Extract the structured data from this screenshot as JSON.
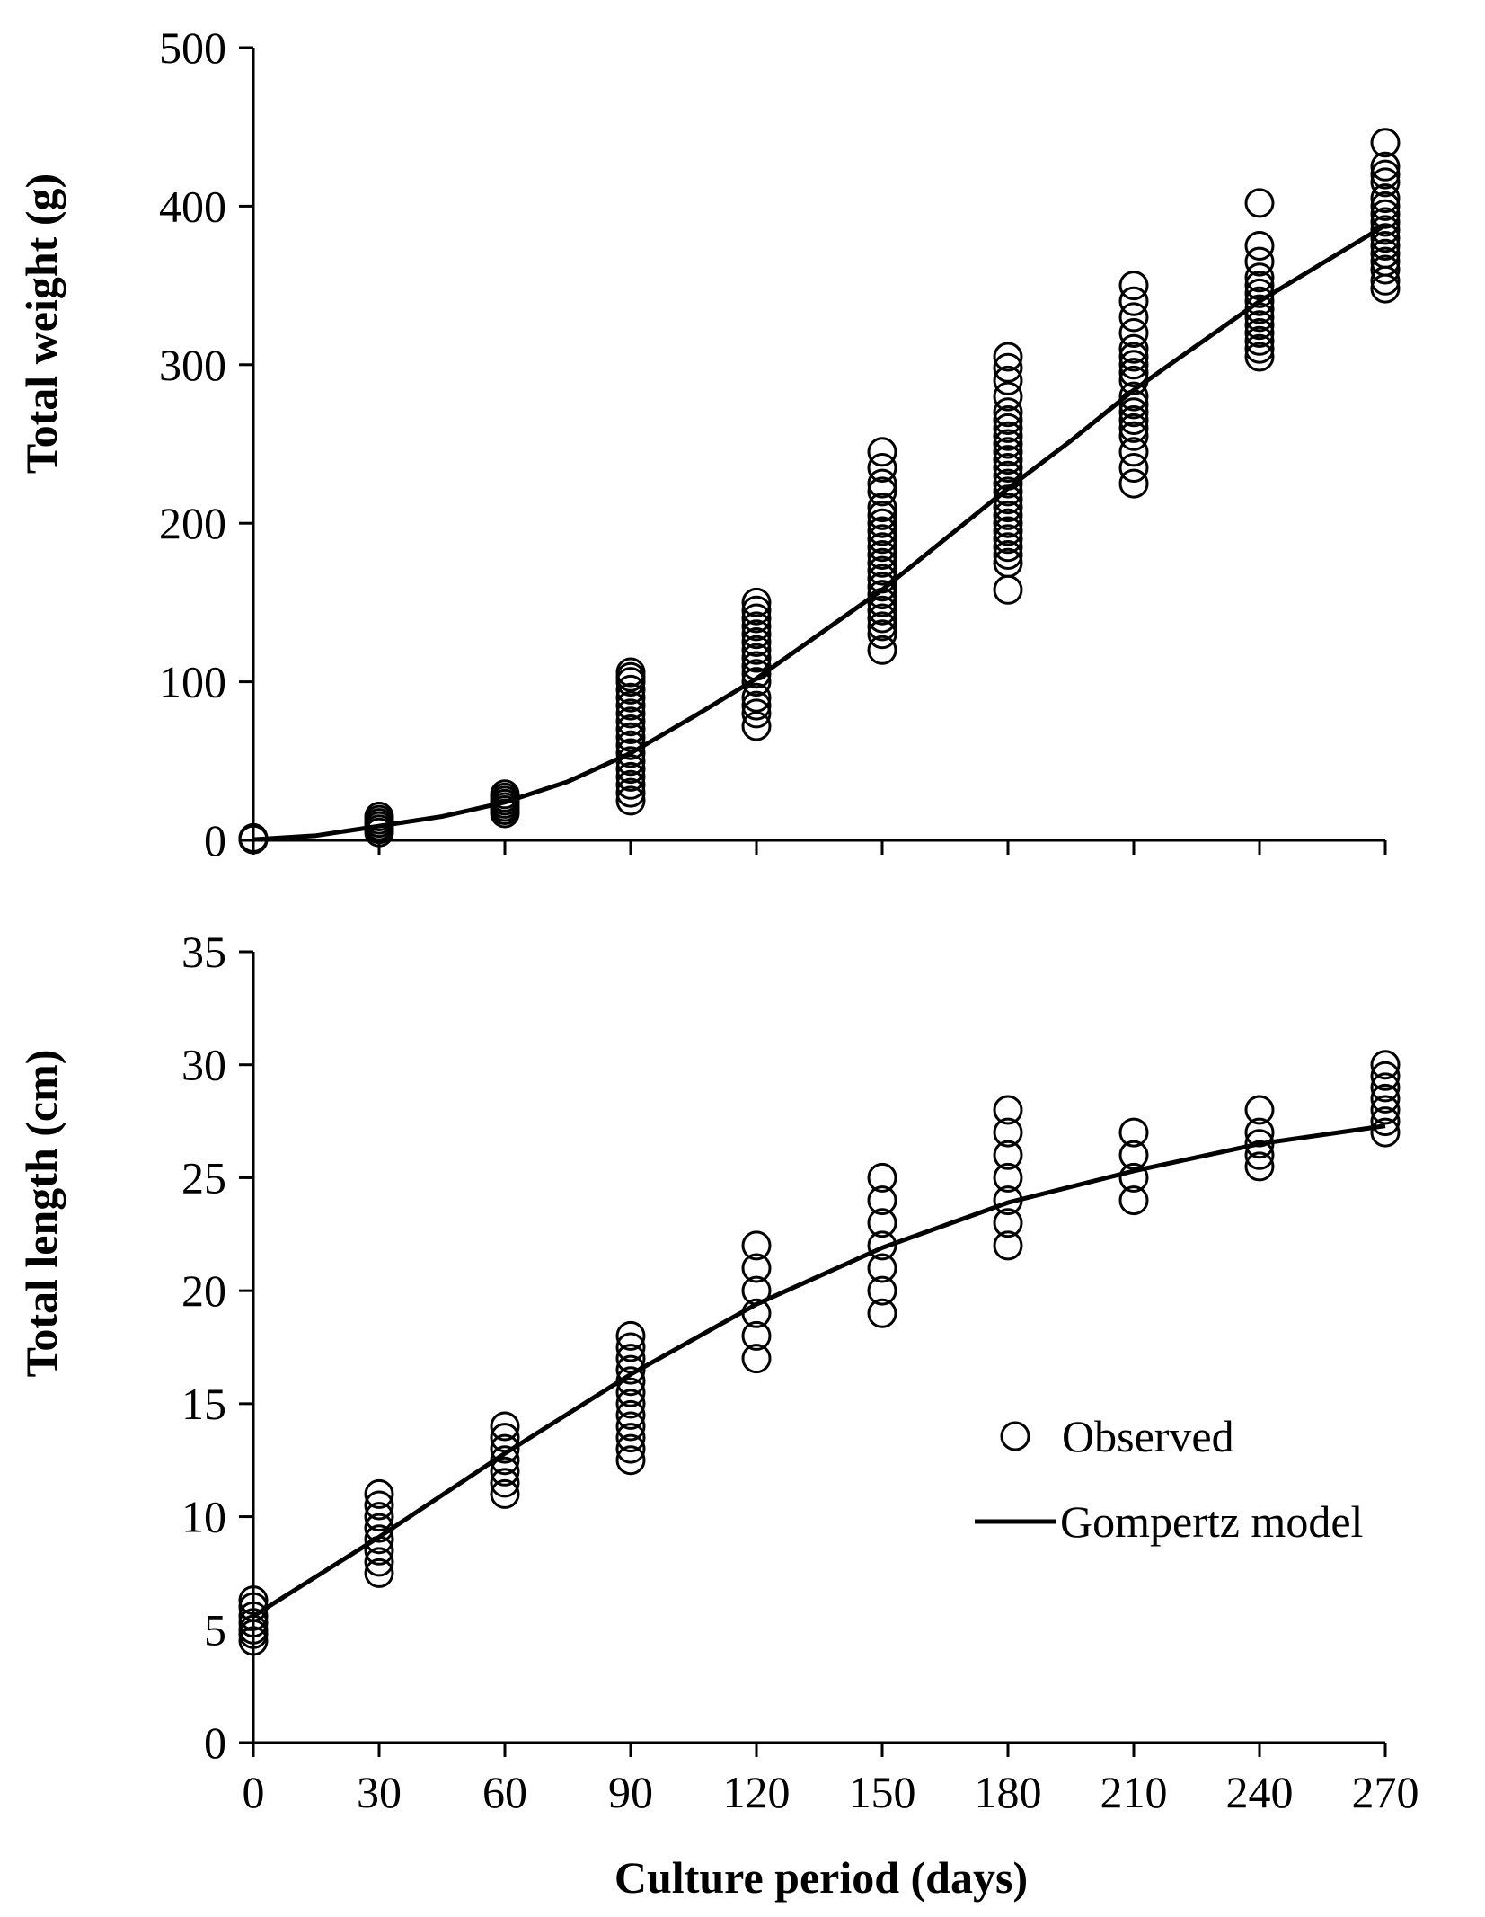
{
  "chart_data": [
    {
      "type": "scatter",
      "id": "weight",
      "title": "",
      "xlabel": "",
      "ylabel": "Total weight (g)",
      "xlim": [
        0,
        270
      ],
      "ylim": [
        0,
        500
      ],
      "x_ticks": [
        0,
        30,
        60,
        90,
        120,
        150,
        180,
        210,
        240,
        270
      ],
      "y_ticks": [
        0,
        100,
        200,
        300,
        400,
        500
      ],
      "x_tick_labels": [],
      "y_tick_labels": [
        "0",
        "100",
        "200",
        "300",
        "400",
        "500"
      ],
      "grid": false,
      "series": [
        {
          "name": "Observed",
          "kind": "scatter",
          "x": [
            0,
            0,
            0,
            30,
            30,
            30,
            30,
            30,
            30,
            60,
            60,
            60,
            60,
            60,
            60,
            60,
            90,
            90,
            90,
            90,
            90,
            90,
            90,
            90,
            90,
            90,
            90,
            90,
            90,
            90,
            90,
            90,
            90,
            90,
            120,
            120,
            120,
            120,
            120,
            120,
            120,
            120,
            120,
            120,
            120,
            120,
            120,
            120,
            120,
            150,
            150,
            150,
            150,
            150,
            150,
            150,
            150,
            150,
            150,
            150,
            150,
            150,
            150,
            150,
            150,
            150,
            150,
            150,
            150,
            150,
            150,
            180,
            180,
            180,
            180,
            180,
            180,
            180,
            180,
            180,
            180,
            180,
            180,
            180,
            180,
            180,
            180,
            180,
            180,
            180,
            180,
            180,
            180,
            180,
            180,
            180,
            210,
            210,
            210,
            210,
            210,
            210,
            210,
            210,
            210,
            210,
            210,
            210,
            210,
            210,
            210,
            210,
            210,
            210,
            240,
            240,
            240,
            240,
            240,
            240,
            240,
            240,
            240,
            240,
            240,
            240,
            240,
            240,
            270,
            270,
            270,
            270,
            270,
            270,
            270,
            270,
            270,
            270,
            270,
            270,
            270,
            270,
            270,
            270
          ],
          "y": [
            0.5,
            1,
            1.5,
            5,
            7,
            9,
            11,
            13,
            15,
            17,
            19,
            21,
            23,
            25,
            27,
            29,
            25,
            30,
            35,
            40,
            45,
            50,
            55,
            60,
            65,
            70,
            75,
            80,
            85,
            90,
            95,
            100,
            103,
            106,
            72,
            80,
            85,
            90,
            100,
            105,
            110,
            115,
            120,
            125,
            130,
            135,
            140,
            145,
            150,
            120,
            130,
            135,
            140,
            145,
            150,
            155,
            160,
            165,
            170,
            175,
            180,
            185,
            190,
            195,
            200,
            205,
            210,
            220,
            225,
            235,
            245,
            158,
            175,
            180,
            185,
            190,
            195,
            200,
            205,
            210,
            215,
            220,
            225,
            230,
            235,
            240,
            245,
            250,
            255,
            260,
            265,
            270,
            280,
            290,
            298,
            305,
            225,
            235,
            245,
            255,
            260,
            265,
            270,
            275,
            280,
            290,
            295,
            300,
            305,
            310,
            320,
            330,
            340,
            350,
            305,
            310,
            315,
            320,
            325,
            330,
            335,
            340,
            345,
            350,
            355,
            365,
            375,
            402,
            348,
            353,
            360,
            365,
            370,
            375,
            380,
            385,
            390,
            395,
            400,
            405,
            415,
            420,
            425,
            440
          ]
        },
        {
          "name": "Gompertz model",
          "kind": "line",
          "x": [
            0,
            15,
            30,
            45,
            60,
            75,
            90,
            105,
            120,
            135,
            150,
            165,
            180,
            195,
            210,
            225,
            240,
            255,
            270
          ],
          "y": [
            0.5,
            3,
            9,
            15,
            24,
            37,
            55,
            78,
            102,
            130,
            158,
            190,
            222,
            252,
            284,
            312,
            340,
            364,
            388
          ]
        }
      ]
    },
    {
      "type": "scatter",
      "id": "length",
      "title": "",
      "xlabel": "Culture period (days)",
      "ylabel": "Total length (cm)",
      "xlim": [
        0,
        270
      ],
      "ylim": [
        0,
        35
      ],
      "x_ticks": [
        0,
        30,
        60,
        90,
        120,
        150,
        180,
        210,
        240,
        270
      ],
      "y_ticks": [
        0,
        5,
        10,
        15,
        20,
        25,
        30,
        35
      ],
      "x_tick_labels": [
        "0",
        "30",
        "60",
        "90",
        "120",
        "150",
        "180",
        "210",
        "240",
        "270"
      ],
      "y_tick_labels": [
        "0",
        "5",
        "10",
        "15",
        "20",
        "25",
        "30",
        "35"
      ],
      "grid": false,
      "legend": {
        "position": "right-middle",
        "entries": [
          "Observed",
          "Gompertz model"
        ]
      },
      "series": [
        {
          "name": "Observed",
          "kind": "scatter",
          "x": [
            0,
            0,
            0,
            0,
            0,
            0,
            0,
            30,
            30,
            30,
            30,
            30,
            30,
            30,
            30,
            60,
            60,
            60,
            60,
            60,
            60,
            60,
            90,
            90,
            90,
            90,
            90,
            90,
            90,
            90,
            90,
            90,
            90,
            90,
            120,
            120,
            120,
            120,
            120,
            120,
            150,
            150,
            150,
            150,
            150,
            150,
            150,
            180,
            180,
            180,
            180,
            180,
            180,
            180,
            210,
            210,
            210,
            210,
            240,
            240,
            240,
            240,
            240,
            270,
            270,
            270,
            270,
            270,
            270,
            270
          ],
          "y": [
            4.5,
            4.8,
            5,
            5.3,
            5.6,
            6,
            6.3,
            7.5,
            8,
            8.5,
            9,
            9.5,
            10,
            10.5,
            11,
            11,
            11.5,
            12,
            12.5,
            13,
            13.5,
            14,
            12.5,
            13,
            13.5,
            14,
            14.5,
            15,
            15.5,
            16,
            16.5,
            17,
            17.5,
            18,
            17,
            18,
            19,
            20,
            21,
            22,
            19,
            20,
            21,
            22,
            23,
            24,
            25,
            22,
            23,
            24,
            25,
            26,
            27,
            28,
            24,
            25,
            26,
            27,
            25.5,
            26,
            26.5,
            27,
            28,
            27,
            27.5,
            28,
            28.5,
            29,
            29.5,
            30
          ]
        },
        {
          "name": "Gompertz model",
          "kind": "line",
          "x": [
            0,
            30,
            60,
            90,
            120,
            150,
            180,
            210,
            240,
            270
          ],
          "y": [
            5.6,
            9.1,
            12.8,
            16.3,
            19.4,
            21.9,
            23.9,
            25.3,
            26.5,
            27.3
          ]
        }
      ]
    }
  ]
}
